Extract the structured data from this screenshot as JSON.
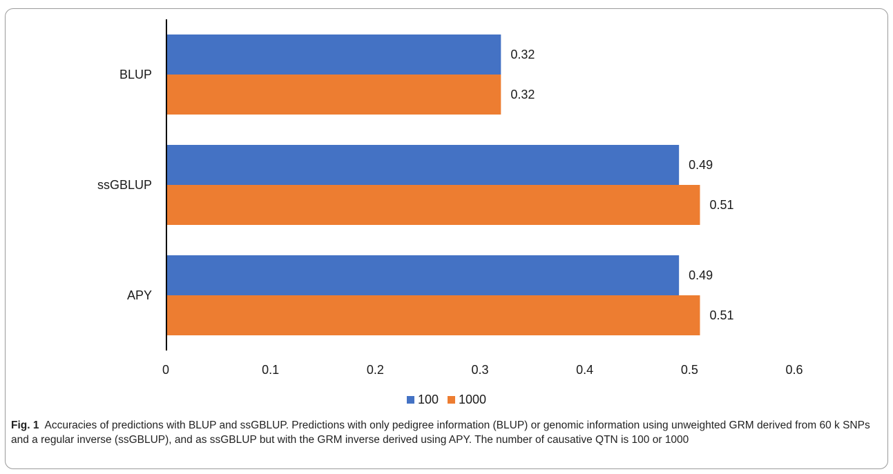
{
  "chart_data": {
    "type": "bar",
    "orientation": "horizontal",
    "categories": [
      "BLUP",
      "ssGBLUP",
      "APY"
    ],
    "series": [
      {
        "name": "100",
        "color": "#4472C4",
        "values": [
          0.32,
          0.49,
          0.49
        ]
      },
      {
        "name": "1000",
        "color": "#ED7D31",
        "values": [
          0.32,
          0.51,
          0.51
        ]
      }
    ],
    "data_labels": [
      [
        "0.32",
        "0.49",
        "0.49"
      ],
      [
        "0.32",
        "0.51",
        "0.51"
      ]
    ],
    "xticks": [
      "0",
      "0.1",
      "0.2",
      "0.3",
      "0.4",
      "0.5",
      "0.6"
    ],
    "xlim": [
      0,
      0.6
    ],
    "grid": false,
    "legend_position": "bottom"
  },
  "caption": {
    "label": "Fig. 1",
    "text": "Accuracies of predictions with BLUP and ssGBLUP. Predictions with only pedigree information (BLUP) or genomic information using unweighted GRM derived from 60 k SNPs and a regular inverse (ssGBLUP), and as ssGBLUP but with the GRM inverse derived using APY. The number of causative QTN is 100 or 1000"
  }
}
